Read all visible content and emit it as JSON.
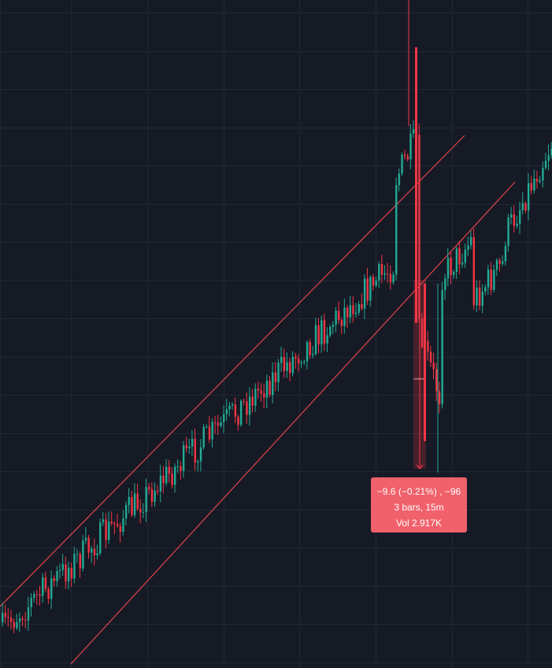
{
  "colors": {
    "background": "#161a25",
    "grid": "#232734",
    "up": "#22ab94",
    "down": "#f23645",
    "channel": "#e0454f",
    "measure_fill": "#f23645",
    "tooltip_bg": "#f0616b"
  },
  "chart_data": {
    "type": "candlestick",
    "grid": true,
    "timeframe": "15m",
    "channel_lines": [
      {
        "name": "upper",
        "points": [
          [
            -1,
            770
          ],
          [
            114,
            656
          ]
        ]
      },
      {
        "name": "lower",
        "points": [
          [
            0,
            848
          ],
          [
            120,
            596
          ]
        ]
      }
    ],
    "upper_line_last": [
      [
        82,
        168
      ],
      [
        114,
        0
      ]
    ],
    "measure": {
      "change": "−9.6 (−0.21%) , −96",
      "bars": "3 bars, 15m",
      "volume": "Vol 2.917K"
    }
  }
}
